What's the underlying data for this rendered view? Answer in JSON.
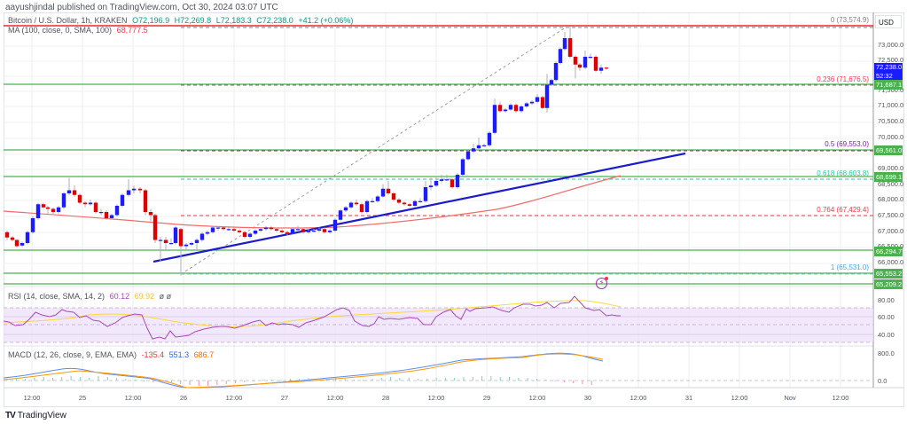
{
  "header": {
    "publish_line": "aayushjindal published on TradingView.com, Oct 30, 2024 03:07 UTC"
  },
  "legend": {
    "symbol": "Bitcoin / U.S. Dollar, 1h, KRAKEN",
    "open": "O72,196.9",
    "high": "H72,269.8",
    "low": "L72,183.3",
    "close": "C72,238.0",
    "change": "+41.2 (+0.06%)",
    "ma_label": "MA (100, close, 0, SMA, 100)",
    "ma_value": "68,777.5",
    "rsi_label": "RSI (14, close, SMA, 14, 2)",
    "rsi_value": "60.12",
    "rsi_ma_value": "69.92",
    "rsi_extra": "ø ø",
    "macd_label": "MACD (12, 26, close, 9, EMA, EMA)",
    "macd_hist": "-135.4",
    "macd_line": "551.3",
    "macd_signal": "686.7"
  },
  "price_axis": {
    "currency": "USD",
    "ticks": [
      "73,000.0",
      "72,500.0",
      "71,500.0",
      "71,000.0",
      "70,500.0",
      "70,000.0",
      "69,000.0",
      "68,500.0",
      "68,000.0",
      "67,500.0",
      "67,000.0",
      "66,500.0",
      "66,000.0"
    ],
    "current_price": "72,238.0",
    "countdown": "52:32",
    "tags": [
      "71,687.1",
      "69,561.0",
      "68,699.1",
      "66,294.7",
      "65,553.2",
      "65,209.2"
    ]
  },
  "rsi_axis": {
    "ticks": [
      "80.00",
      "60.00",
      "40.00"
    ]
  },
  "macd_axis": {
    "ticks": [
      "800.0",
      "0.0"
    ]
  },
  "fib_levels": [
    {
      "label": "0 (73,574.9)",
      "color": "#808080"
    },
    {
      "label": "0.236 (71,676.5)",
      "color": "#f23645"
    },
    {
      "label": "0.5 (69,553.0)",
      "color": "#7b1fa2"
    },
    {
      "label": "0.618 (68,603.8)",
      "color": "#26c6a0"
    },
    {
      "label": "0.764 (67,429.4)",
      "color": "#f23645"
    },
    {
      "label": "1 (65,531.0)",
      "color": "#42a5f5"
    }
  ],
  "time_axis": {
    "labels": [
      "12:00",
      "25",
      "12:00",
      "26",
      "12:00",
      "27",
      "12:00",
      "28",
      "12:00",
      "29",
      "12:00",
      "30",
      "12:00",
      "31",
      "12:00",
      "Nov",
      "12:00"
    ]
  },
  "footer": {
    "brand": "TradingView",
    "logo": "TV"
  },
  "colors": {
    "up": "#1b1bff",
    "down": "#e00000",
    "ma": "#f26b6b",
    "trendline": "#1b1bcc",
    "support_line": "#4caf50",
    "resistance_line": "#e00000",
    "rsi": "#ab47bc",
    "rsi_ma": "#fdd835",
    "macd": "#5b8def",
    "signal": "#ff9800"
  },
  "chart_data": {
    "type": "candlestick",
    "title": "Bitcoin / U.S. Dollar, 1h, KRAKEN",
    "xlabel": "",
    "ylabel": "USD",
    "ylim": [
      65000,
      73900
    ],
    "x_range": [
      "Oct 24 12:00",
      "Nov 1 12:00"
    ],
    "ohlc_approx": [
      {
        "t": "Oct 24 06:00",
        "close": 66900
      },
      {
        "t": "Oct 24 12:00",
        "close": 67100
      },
      {
        "t": "Oct 25 00:00",
        "close": 68200
      },
      {
        "t": "Oct 25 06:00",
        "close": 68300
      },
      {
        "t": "Oct 25 12:00",
        "close": 67700
      },
      {
        "t": "Oct 25 22:00",
        "close": 68500
      },
      {
        "t": "Oct 26 00:00",
        "close": 66700
      },
      {
        "t": "Oct 26 06:00",
        "close": 66800
      },
      {
        "t": "Oct 26 12:00",
        "close": 67050
      },
      {
        "t": "Oct 27 00:00",
        "close": 67100
      },
      {
        "t": "Oct 27 12:00",
        "close": 67500
      },
      {
        "t": "Oct 28 00:00",
        "close": 68000
      },
      {
        "t": "Oct 28 12:00",
        "close": 68700
      },
      {
        "t": "Oct 29 00:00",
        "close": 69600
      },
      {
        "t": "Oct 29 06:00",
        "close": 71100
      },
      {
        "t": "Oct 29 12:00",
        "close": 71200
      },
      {
        "t": "Oct 29 18:00",
        "close": 72800
      },
      {
        "t": "Oct 29 22:00",
        "close": 73400
      },
      {
        "t": "Oct 30 03:00",
        "close": 72238
      }
    ],
    "ma100": {
      "start": 67900,
      "end": 68777.5
    },
    "horizontal_levels": [
      73574.9,
      71687.1,
      69561.0,
      68699.1,
      66294.7,
      65553.2,
      65209.2
    ],
    "fibonacci": [
      {
        "ratio": 0,
        "price": 73574.9
      },
      {
        "ratio": 0.236,
        "price": 71676.5
      },
      {
        "ratio": 0.5,
        "price": 69553.0
      },
      {
        "ratio": 0.618,
        "price": 68603.8
      },
      {
        "ratio": 0.764,
        "price": 67429.4
      },
      {
        "ratio": 1,
        "price": 65531.0
      }
    ],
    "trendline": {
      "from": {
        "t": "Oct 25 22:00",
        "price": 65800
      },
      "to": {
        "t": "Oct 31 10:00",
        "price": 69400
      }
    },
    "rsi": {
      "current": 60.12,
      "ma": 69.92,
      "band": [
        30,
        70
      ],
      "ticks": [
        80,
        60,
        40
      ]
    },
    "macd": {
      "hist": -135.4,
      "macd": 551.3,
      "signal": 686.7,
      "ticks": [
        800,
        0
      ]
    }
  }
}
